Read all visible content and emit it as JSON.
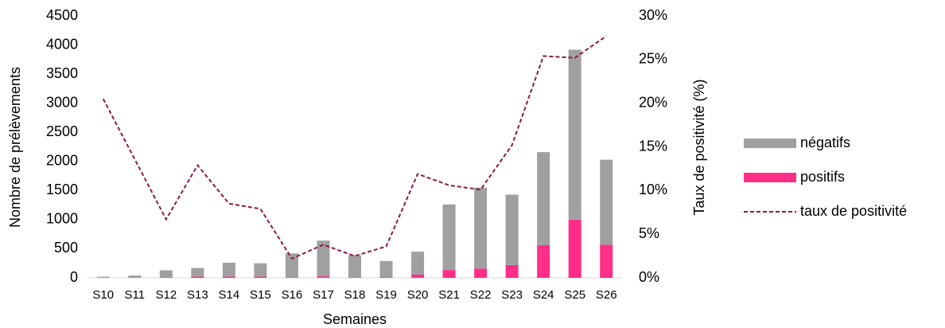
{
  "chart_data": {
    "type": "bar-line",
    "xlabel": "Semaines",
    "ylabel": "Nombre de prélèvements",
    "y2label": "Taux de positivité (%)",
    "categories": [
      "S10",
      "S11",
      "S12",
      "S13",
      "S14",
      "S15",
      "S16",
      "S17",
      "S18",
      "S19",
      "S20",
      "S21",
      "S22",
      "S23",
      "S24",
      "S25",
      "S26"
    ],
    "series": [
      {
        "name": "négatifs",
        "type": "bar",
        "color": "#a0a0a0",
        "values": [
          19,
          38,
          121,
          148,
          238,
          230,
          411,
          614,
          380,
          279,
          395,
          1125,
          1390,
          1210,
          1600,
          2920,
          1460
        ]
      },
      {
        "name": "positifs",
        "type": "bar",
        "color": "#ff2e88",
        "values": [
          1,
          2,
          9,
          22,
          22,
          20,
          9,
          26,
          10,
          11,
          55,
          135,
          160,
          220,
          560,
          1000,
          570
        ]
      },
      {
        "name": "taux de positivité",
        "type": "line",
        "axis": "y2",
        "color": "#8c1a3f",
        "dashed": true,
        "values": [
          20.5,
          13.6,
          6.7,
          12.9,
          8.5,
          7.9,
          2.2,
          3.8,
          2.5,
          3.6,
          11.9,
          10.6,
          10.1,
          15.2,
          25.4,
          25.2,
          27.7
        ]
      }
    ],
    "stacked": true,
    "ylim": [
      0,
      4500
    ],
    "yticks": [
      0,
      500,
      1000,
      1500,
      2000,
      2500,
      3000,
      3500,
      4000,
      4500
    ],
    "y2lim": [
      0,
      30
    ],
    "y2ticks": [
      {
        "value": 0,
        "label": "0%"
      },
      {
        "value": 5,
        "label": "5%"
      },
      {
        "value": 10,
        "label": "10%"
      },
      {
        "value": 15,
        "label": "15%"
      },
      {
        "value": 20,
        "label": "20%"
      },
      {
        "value": 25,
        "label": "25%"
      },
      {
        "value": 30,
        "label": "30%"
      }
    ],
    "legend": "right"
  }
}
